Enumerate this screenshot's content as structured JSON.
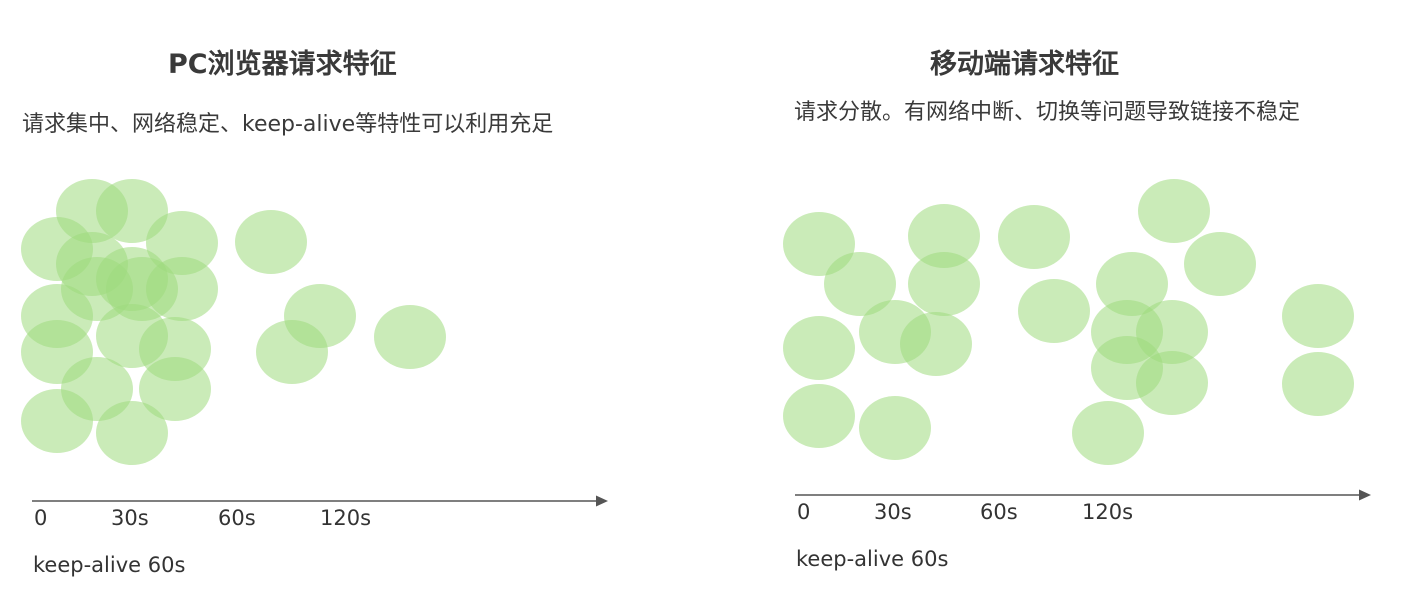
{
  "panels": [
    {
      "title": "PC浏览器请求特征",
      "subtitle": "请求集中、网络稳定、keep-alive等特性可以利用充足",
      "ticks": [
        "0",
        "30s",
        "60s",
        "120s"
      ],
      "note": "keep-alive 60s",
      "colors": {
        "bubble": "#9edb7d",
        "axis": "#555555"
      }
    },
    {
      "title": "移动端请求特征",
      "subtitle": "请求分散。有网络中断、切换等问题导致链接不稳定",
      "ticks": [
        "0",
        "30s",
        "60s",
        "120s"
      ],
      "note": "keep-alive 60s",
      "colors": {
        "bubble": "#9edb7d",
        "axis": "#555555"
      }
    }
  ]
}
